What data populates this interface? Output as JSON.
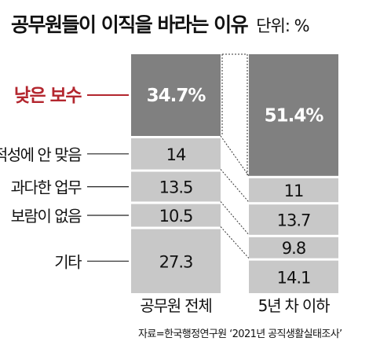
{
  "header": {
    "title": "공무원들이 이직을 바라는 이유",
    "unit": "단위: %"
  },
  "chart_data": {
    "type": "bar",
    "stacked": true,
    "title": "공무원들이 이직을 바라는 이유",
    "unit": "단위: %",
    "categories": [
      "공무원 전체",
      "5년 차 이하"
    ],
    "series": [
      {
        "name": "낮은 보수",
        "values": [
          34.7,
          51.4
        ],
        "color": "#808080"
      },
      {
        "name": "적성에 안 맞음",
        "values": [
          14,
          0
        ],
        "color": "#c8c8c8"
      },
      {
        "name": "과다한 업무",
        "values": [
          13.5,
          11
        ],
        "color": "#c8c8c8"
      },
      {
        "name": "보람이 없음",
        "values": [
          10.5,
          13.7
        ],
        "color": "#c8c8c8"
      },
      {
        "name": "기타",
        "values": [
          27.3,
          9.8
        ],
        "color": "#c8c8c8"
      }
    ],
    "value_labels": [
      [
        "34.7%",
        "51.4%"
      ],
      [
        "14",
        ""
      ],
      [
        "13.5",
        "11"
      ],
      [
        "10.5",
        "13.7"
      ],
      [
        "27.3",
        "9.8"
      ]
    ],
    "extra_second_bar_segment": {
      "value": 14.1,
      "label": "14.1"
    },
    "highlight_color": "#b3262e",
    "legend": "left"
  },
  "source": "자료=한국행정연구원 ‘2021년 공직생활실태조사’"
}
